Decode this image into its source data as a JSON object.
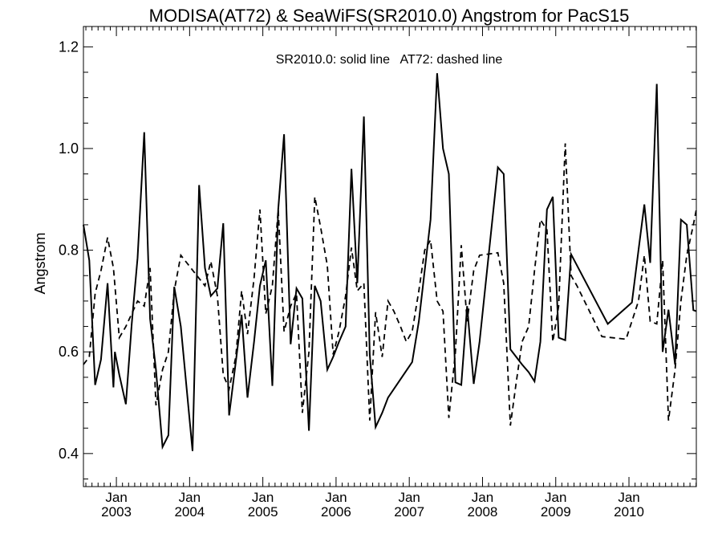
{
  "chart_data": {
    "type": "line",
    "title": "MODISA(AT72) & SeaWiFS(SR2010.0)  Angstrom for PacS15",
    "annotation": "SR2010.0: solid line   AT72: dashed line",
    "ylabel": "Angstrom",
    "xlabel": "",
    "xlim": [
      2002.55,
      2010.92
    ],
    "ylim": [
      0.335,
      1.24
    ],
    "grid": false,
    "y_ticks": [
      {
        "value": 0.4,
        "label": "0.4"
      },
      {
        "value": 0.6,
        "label": "0.6"
      },
      {
        "value": 0.8,
        "label": "0.8"
      },
      {
        "value": 1.0,
        "label": "1.0"
      },
      {
        "value": 1.2,
        "label": "1.2"
      }
    ],
    "x_ticks": [
      {
        "value": 2003.0,
        "month": "Jan",
        "year": "2003"
      },
      {
        "value": 2004.0,
        "month": "Jan",
        "year": "2004"
      },
      {
        "value": 2005.0,
        "month": "Jan",
        "year": "2005"
      },
      {
        "value": 2006.0,
        "month": "Jan",
        "year": "2006"
      },
      {
        "value": 2007.0,
        "month": "Jan",
        "year": "2007"
      },
      {
        "value": 2008.0,
        "month": "Jan",
        "year": "2008"
      },
      {
        "value": 2009.0,
        "month": "Jan",
        "year": "2009"
      },
      {
        "value": 2010.0,
        "month": "Jan",
        "year": "2010"
      }
    ],
    "series": [
      {
        "name": "SR2010.0",
        "style": "solid",
        "color": "#000000",
        "x": [
          2002.55,
          2002.63,
          2002.71,
          2002.79,
          2002.88,
          2002.96,
          2002.98,
          2003.04,
          2003.13,
          2003.21,
          2003.29,
          2003.38,
          2003.46,
          2003.54,
          2003.63,
          2003.71,
          2003.79,
          2003.88,
          2004.04,
          2004.13,
          2004.21,
          2004.29,
          2004.38,
          2004.46,
          2004.54,
          2004.63,
          2004.71,
          2004.79,
          2004.88,
          2004.96,
          2005.04,
          2005.13,
          2005.21,
          2005.29,
          2005.38,
          2005.46,
          2005.54,
          2005.63,
          2005.71,
          2005.79,
          2005.88,
          2005.96,
          2006.04,
          2006.13,
          2006.21,
          2006.29,
          2006.38,
          2006.46,
          2006.54,
          2006.63,
          2006.71,
          2007.04,
          2007.13,
          2007.21,
          2007.29,
          2007.38,
          2007.46,
          2007.54,
          2007.63,
          2007.71,
          2007.79,
          2007.88,
          2007.96,
          2008.21,
          2008.29,
          2008.38,
          2008.46,
          2008.54,
          2008.63,
          2008.71,
          2008.79,
          2008.88,
          2008.96,
          2009.04,
          2009.13,
          2009.21,
          2009.71,
          2010.04,
          2010.13,
          2010.21,
          2010.29,
          2010.38,
          2010.46,
          2010.54,
          2010.63,
          2010.71,
          2010.79,
          2010.88,
          2010.92
        ],
        "values": [
          0.85,
          0.78,
          0.535,
          0.585,
          0.735,
          0.53,
          0.6,
          0.555,
          0.497,
          0.655,
          0.785,
          1.032,
          0.665,
          0.565,
          0.413,
          0.436,
          0.728,
          0.65,
          0.405,
          0.928,
          0.765,
          0.71,
          0.725,
          0.853,
          0.475,
          0.58,
          0.673,
          0.51,
          0.62,
          0.73,
          0.78,
          0.533,
          0.88,
          1.028,
          0.615,
          0.725,
          0.705,
          0.445,
          0.73,
          0.7,
          0.565,
          0.59,
          0.62,
          0.65,
          0.96,
          0.735,
          1.063,
          0.595,
          0.452,
          0.48,
          0.51,
          0.58,
          0.66,
          0.76,
          0.86,
          1.148,
          1.0,
          0.95,
          0.54,
          0.535,
          0.69,
          0.537,
          0.62,
          0.963,
          0.95,
          0.605,
          0.59,
          0.575,
          0.56,
          0.542,
          0.62,
          0.88,
          0.905,
          0.628,
          0.623,
          0.792,
          0.655,
          0.697,
          0.8,
          0.89,
          0.775,
          1.127,
          0.6,
          0.683,
          0.575,
          0.86,
          0.85,
          0.682,
          0.68
        ]
      },
      {
        "name": "AT72",
        "style": "dashed",
        "color": "#000000",
        "x": [
          2002.55,
          2002.63,
          2002.71,
          2002.79,
          2002.88,
          2002.96,
          2003.04,
          2003.13,
          2003.21,
          2003.29,
          2003.38,
          2003.46,
          2003.54,
          2003.63,
          2003.71,
          2003.79,
          2003.88,
          2004.21,
          2004.29,
          2004.38,
          2004.46,
          2004.54,
          2004.63,
          2004.71,
          2004.79,
          2004.88,
          2004.96,
          2005.04,
          2005.13,
          2005.21,
          2005.29,
          2005.38,
          2005.46,
          2005.54,
          2005.63,
          2005.71,
          2005.79,
          2005.88,
          2005.96,
          2006.04,
          2006.13,
          2006.21,
          2006.29,
          2006.38,
          2006.46,
          2006.54,
          2006.63,
          2006.71,
          2006.79,
          2006.88,
          2006.96,
          2007.04,
          2007.13,
          2007.21,
          2007.29,
          2007.38,
          2007.46,
          2007.54,
          2007.63,
          2007.71,
          2007.79,
          2007.88,
          2007.96,
          2008.21,
          2008.29,
          2008.38,
          2008.46,
          2008.54,
          2008.63,
          2008.71,
          2008.79,
          2008.88,
          2008.96,
          2009.04,
          2009.13,
          2009.21,
          2009.29,
          2009.63,
          2009.96,
          2010.13,
          2010.21,
          2010.29,
          2010.38,
          2010.46,
          2010.54,
          2010.63,
          2010.71,
          2010.79,
          2010.88,
          2010.92
        ],
        "values": [
          0.575,
          0.59,
          0.715,
          0.76,
          0.825,
          0.765,
          0.628,
          0.65,
          0.675,
          0.7,
          0.69,
          0.765,
          0.495,
          0.565,
          0.6,
          0.72,
          0.79,
          0.73,
          0.778,
          0.71,
          0.555,
          0.527,
          0.59,
          0.72,
          0.635,
          0.745,
          0.88,
          0.675,
          0.73,
          0.88,
          0.64,
          0.69,
          0.715,
          0.48,
          0.6,
          0.905,
          0.845,
          0.77,
          0.595,
          0.64,
          0.71,
          0.805,
          0.72,
          0.735,
          0.465,
          0.678,
          0.59,
          0.7,
          0.68,
          0.65,
          0.62,
          0.64,
          0.72,
          0.8,
          0.82,
          0.7,
          0.68,
          0.47,
          0.6,
          0.81,
          0.66,
          0.76,
          0.79,
          0.795,
          0.735,
          0.455,
          0.54,
          0.62,
          0.65,
          0.76,
          0.86,
          0.84,
          0.62,
          0.69,
          1.01,
          0.75,
          0.73,
          0.63,
          0.625,
          0.7,
          0.79,
          0.66,
          0.655,
          0.78,
          0.465,
          0.565,
          0.7,
          0.79,
          0.85,
          0.88
        ]
      }
    ]
  }
}
